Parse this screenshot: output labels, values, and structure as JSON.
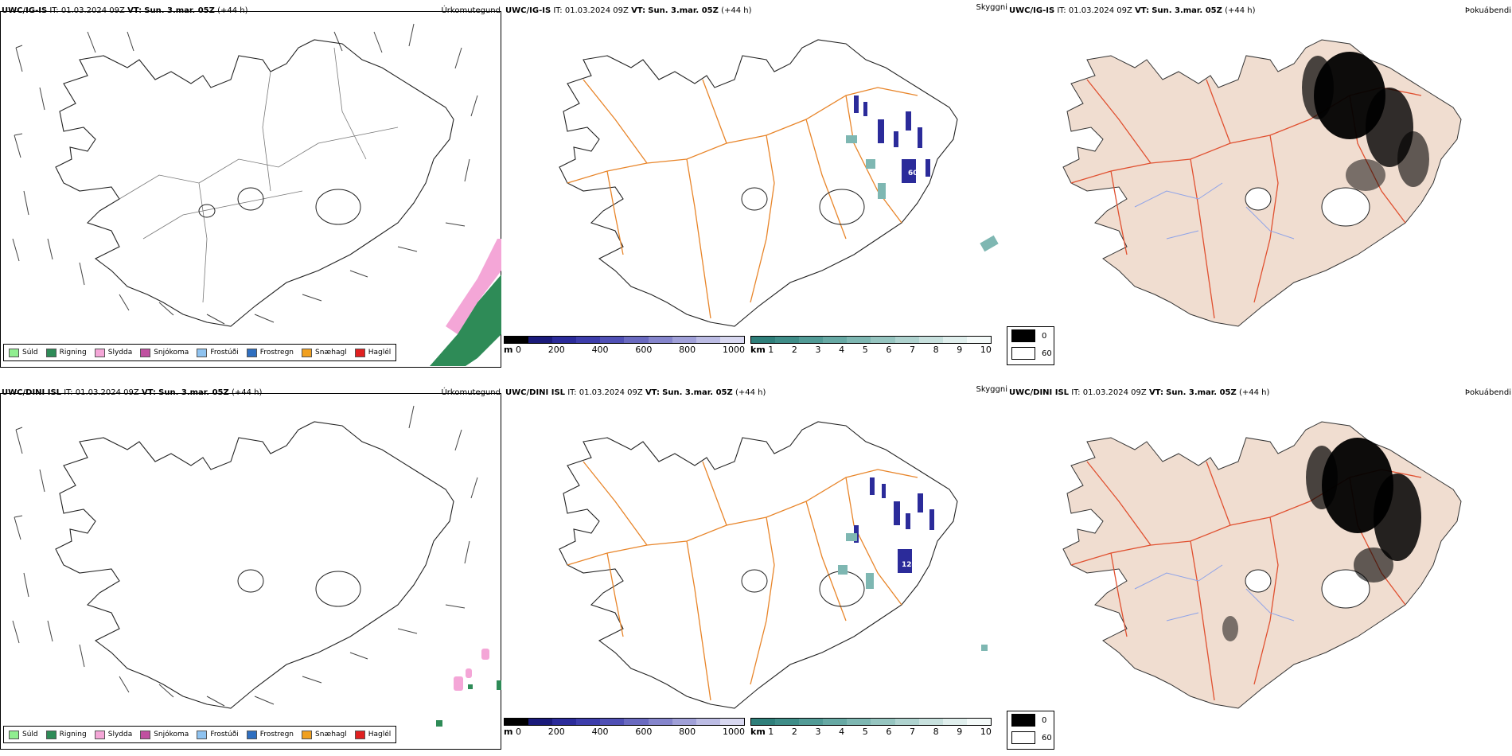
{
  "rows": [
    {
      "model": "UWC/IG-IS",
      "it_label": "IT:",
      "it_value": "01.03.2024 09Z",
      "vt_label": "VT:",
      "vt_value": "Sun. 3.mar. 05Z",
      "lead": "(+44 h)",
      "left_title": "Úrkomutegund",
      "mid_title": "Skyggni",
      "right_title": "Þokuábendi"
    },
    {
      "model": "UWC/DINI ISL",
      "it_label": "IT:",
      "it_value": "01.03.2024 09Z",
      "vt_label": "VT:",
      "vt_value": "Sun. 3.mar. 05Z",
      "lead": "(+44 h)",
      "left_title": "Úrkomutegund",
      "mid_title": "Skyggni",
      "right_title": "Þokuábendi"
    }
  ],
  "precip_legend": [
    {
      "label": "Súld",
      "color": "#90ee90"
    },
    {
      "label": "Rigning",
      "color": "#2e8b57"
    },
    {
      "label": "Slydda",
      "color": "#f4a6d7"
    },
    {
      "label": "Snjókoma",
      "color": "#c050a0"
    },
    {
      "label": "Frostúði",
      "color": "#8fc3f0"
    },
    {
      "label": "Frostregn",
      "color": "#2f6fc0"
    },
    {
      "label": "Snæhagl",
      "color": "#f0a020"
    },
    {
      "label": "Haglél",
      "color": "#e02020"
    }
  ],
  "visibility_labels": [
    "60",
    "124"
  ],
  "m_bar": {
    "unit": "m",
    "ticks": [
      "0",
      "200",
      "400",
      "600",
      "800",
      "1000"
    ],
    "colors": [
      "#000000",
      "#1a1a7a",
      "#2b2b9a",
      "#3d3dab",
      "#5050b5",
      "#6a6ac0",
      "#8585cc",
      "#a0a0d8",
      "#bcbce4",
      "#d8d8f0"
    ]
  },
  "km_bar": {
    "unit": "km",
    "ticks": [
      "1",
      "2",
      "3",
      "4",
      "5",
      "6",
      "7",
      "8",
      "9",
      "10"
    ],
    "colors": [
      "#2f7f7a",
      "#3f8d88",
      "#529b96",
      "#67a9a4",
      "#7eb7b2",
      "#96c5c0",
      "#afd3cf",
      "#c8e1de",
      "#e0efed",
      "#f4faf9"
    ]
  },
  "fog_legend": [
    {
      "label": "0",
      "color": "#000000"
    },
    {
      "label": "60",
      "color": "#ffffff"
    }
  ]
}
